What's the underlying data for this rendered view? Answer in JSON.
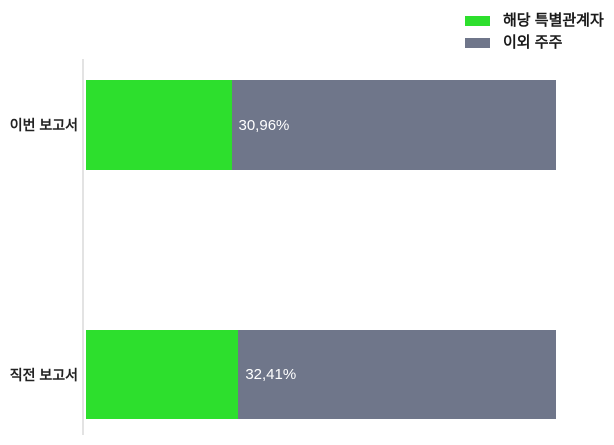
{
  "chart_data": {
    "type": "bar",
    "orientation": "horizontal",
    "stacked": true,
    "unit": "%",
    "categories": [
      "이번 보고서",
      "직전 보고서"
    ],
    "series": [
      {
        "name": "해당 특별관계자",
        "color": "#2ddf2d",
        "values": [
          30.96,
          32.41
        ]
      },
      {
        "name": "이외 주주",
        "color": "#6f768a",
        "values": [
          69.04,
          67.59
        ]
      }
    ],
    "value_labels": [
      "30,96%",
      "32,41%"
    ],
    "xlim": [
      0,
      100
    ],
    "grid": false,
    "legend_position": "top-right",
    "axis_line_color": "#e3e3e3"
  },
  "legend": {
    "items": [
      {
        "label": "해당 특별관계자",
        "color": "#2ddf2d"
      },
      {
        "label": "이외 주주",
        "color": "#6f768a"
      }
    ]
  },
  "colors": {
    "bar_green": "#2ddf2d",
    "bar_gray": "#6f768a",
    "value_label_text": "#ffffff",
    "category_text": "#222222",
    "legend_text": "#1a1a1a",
    "axis_line": "#e3e3e3",
    "background": "#ffffff"
  }
}
